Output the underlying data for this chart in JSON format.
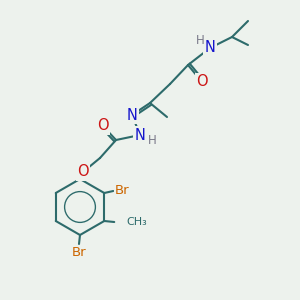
{
  "bg_color": "#edf2ed",
  "bond_color": "#2d6b6b",
  "atom_colors": {
    "N": "#1515cc",
    "O": "#cc1515",
    "Br": "#cc6600",
    "H": "#7a7a8a"
  },
  "font_size": 9.5,
  "bond_lw": 1.5
}
